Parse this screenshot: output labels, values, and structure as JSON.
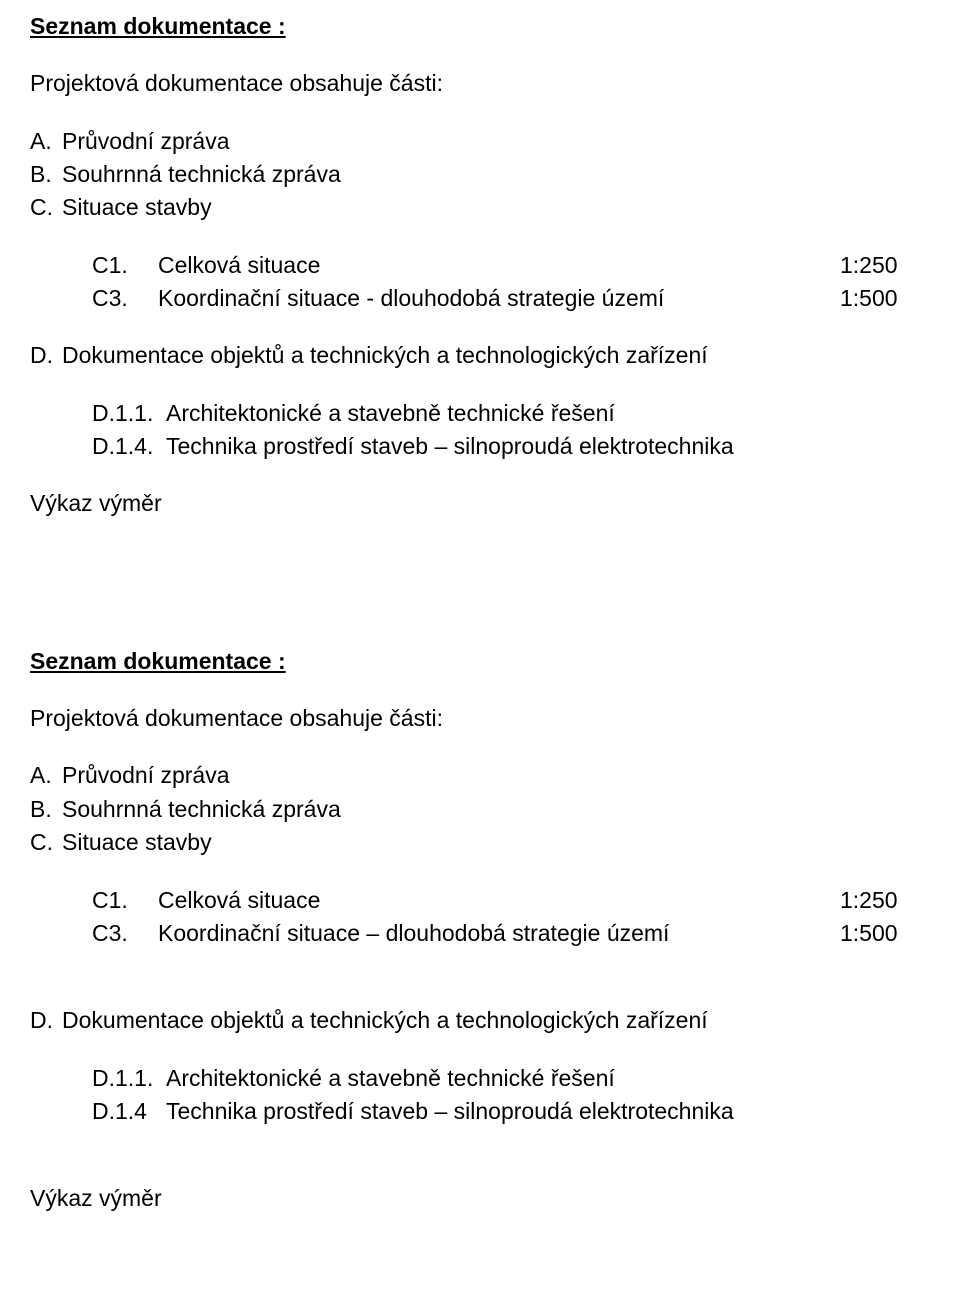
{
  "colors": {
    "text": "#000000",
    "background": "#ffffff"
  },
  "typography": {
    "font_family": "Arial",
    "body_fontsize_pt": 17,
    "heading_fontsize_pt": 17,
    "heading_weight": "bold"
  },
  "section1": {
    "heading": "Seznam dokumentace :",
    "intro": "Projektová dokumentace obsahuje části:",
    "items": [
      {
        "prefix": "A.",
        "label": "Průvodní zpráva"
      },
      {
        "prefix": "B.",
        "label": "Souhrnná technická zpráva"
      },
      {
        "prefix": "C.",
        "label": "Situace stavby"
      }
    ],
    "table": [
      {
        "code": "C1.",
        "label": "Celková situace",
        "scale": "1:250"
      },
      {
        "code": "C3.",
        "label": "Koordinační situace - dlouhodobá strategie území",
        "scale": "1:500"
      }
    ],
    "subheading_prefix": "D.",
    "subheading_label": "Dokumentace objektů a technických a technologických zařízení",
    "subitems": [
      {
        "code": "D.1.1.",
        "label": "Architektonické a stavebně technické řešení"
      },
      {
        "code": "D.1.4.",
        "label": "Technika prostředí staveb – silnoproudá elektrotechnika"
      }
    ],
    "footer": "Výkaz výměr"
  },
  "section2": {
    "heading": "Seznam dokumentace :",
    "intro": "Projektová dokumentace obsahuje části:",
    "items": [
      {
        "prefix": "A.",
        "label": "Průvodní zpráva"
      },
      {
        "prefix": "B.",
        "label": "Souhrnná technická zpráva"
      },
      {
        "prefix": "C.",
        "label": "Situace stavby"
      }
    ],
    "table": [
      {
        "code": "C1.",
        "label": "Celková situace",
        "scale": "1:250"
      },
      {
        "code": "C3.",
        "label": "Koordinační situace – dlouhodobá strategie území",
        "scale": "1:500"
      }
    ],
    "subheading_prefix": "D.",
    "subheading_label": "Dokumentace objektů a technických a technologických zařízení",
    "subitems": [
      {
        "code": "D.1.1.",
        "label": "Architektonické a stavebně technické řešení"
      },
      {
        "code": "D.1.4",
        "label": "Technika prostředí staveb – silnoproudá elektrotechnika"
      }
    ],
    "footer": "Výkaz výměr"
  }
}
